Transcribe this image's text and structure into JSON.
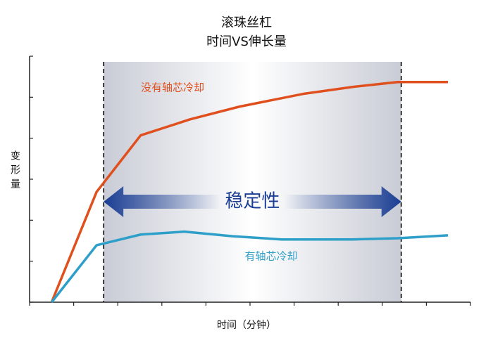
{
  "chart_data": {
    "type": "line",
    "title": "滚珠丝杠",
    "subtitle": "时间VS伸长量",
    "x_label": "时间（分钟）",
    "y_label": "变形量",
    "annotation": "稳定性",
    "region_x": [
      1.68,
      8.43
    ],
    "xlim": [
      0,
      10
    ],
    "xticks": [
      0,
      1,
      2,
      3,
      4,
      5,
      6,
      7,
      8,
      9,
      10
    ],
    "ylim": [
      0,
      6
    ],
    "yticks": [
      0,
      1,
      2,
      3,
      4,
      5,
      6
    ],
    "series": [
      {
        "name": "没有轴芯冷却",
        "color": "#e0501e",
        "x": [
          0.5,
          1.52,
          2.52,
          3.64,
          4.76,
          6.2,
          7.32,
          8.35,
          9.49
        ],
        "values": [
          0,
          2.69,
          4.07,
          4.46,
          4.77,
          5.08,
          5.25,
          5.37,
          5.37
        ]
      },
      {
        "name": "有轴芯冷却",
        "color": "#2e9fc8",
        "x": [
          0.5,
          1.52,
          2.52,
          3.51,
          4.6,
          5.72,
          7.32,
          8.35,
          9.49
        ],
        "values": [
          0,
          1.39,
          1.65,
          1.72,
          1.61,
          1.53,
          1.53,
          1.56,
          1.63
        ]
      }
    ]
  }
}
